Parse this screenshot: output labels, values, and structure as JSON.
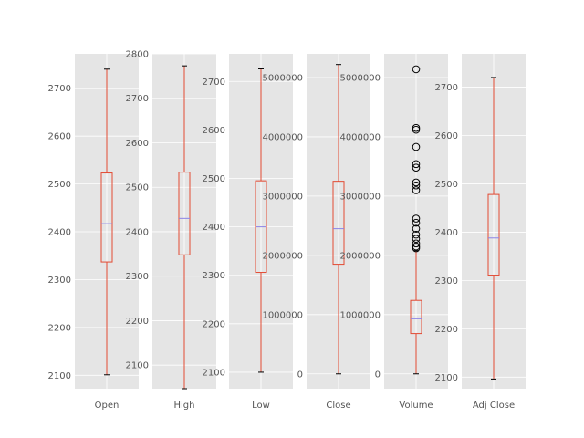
{
  "chart_data": {
    "type": "box",
    "grid": true,
    "style": "ggplot",
    "colors": {
      "box": "#E24A33",
      "median": "#8EBA42",
      "median_line": "#8b83e6",
      "panel": "#e5e5e5",
      "grid": "#ffffff"
    },
    "panels": [
      {
        "label": "Open",
        "ylim": [
          2072,
          2772
        ],
        "yticks": [
          2100,
          2200,
          2300,
          2400,
          2500,
          2600,
          2700
        ],
        "whisker_low": 2101,
        "q1": 2337,
        "median": 2417,
        "q3": 2523,
        "whisker_high": 2740,
        "outliers": []
      },
      {
        "label": "High",
        "ylim": [
          2047,
          2800
        ],
        "yticks": [
          2100,
          2200,
          2300,
          2400,
          2500,
          2600,
          2700,
          2800
        ],
        "whisker_low": 2047,
        "q1": 2348,
        "median": 2430,
        "q3": 2534,
        "whisker_high": 2773,
        "outliers": []
      },
      {
        "label": "Low",
        "ylim": [
          2066,
          2757
        ],
        "yticks": [
          2100,
          2200,
          2300,
          2400,
          2500,
          2600,
          2700
        ],
        "whisker_low": 2100,
        "q1": 2306,
        "median": 2400,
        "q3": 2495,
        "whisker_high": 2726,
        "outliers": []
      },
      {
        "label": "Close",
        "ylim": [
          -250000,
          5400000
        ],
        "yticks": [
          0,
          1000000,
          2000000,
          3000000,
          4000000,
          5000000
        ],
        "whisker_low": 0,
        "q1": 1850000,
        "median": 2450000,
        "q3": 3250000,
        "whisker_high": 5220000,
        "outliers": []
      },
      {
        "label": "Volume",
        "ylim": [
          -250000,
          5400000
        ],
        "yticks": [
          0,
          1000000,
          2000000,
          3000000,
          4000000,
          5000000
        ],
        "whisker_low": 0,
        "q1": 680000,
        "median": 930000,
        "q3": 1240000,
        "whisker_high": 2080000,
        "outliers": [
          2120000,
          2150000,
          2200000,
          2280000,
          2350000,
          2450000,
          2550000,
          2620000,
          3100000,
          3180000,
          3230000,
          3480000,
          3540000,
          3830000,
          4120000,
          4150000,
          5140000
        ]
      },
      {
        "label": "Adj Close",
        "ylim": [
          2076,
          2769
        ],
        "yticks": [
          2100,
          2200,
          2300,
          2400,
          2500,
          2600,
          2700
        ],
        "whisker_low": 2096,
        "q1": 2311,
        "median": 2388,
        "q3": 2478,
        "whisker_high": 2720,
        "outliers": []
      }
    ]
  }
}
